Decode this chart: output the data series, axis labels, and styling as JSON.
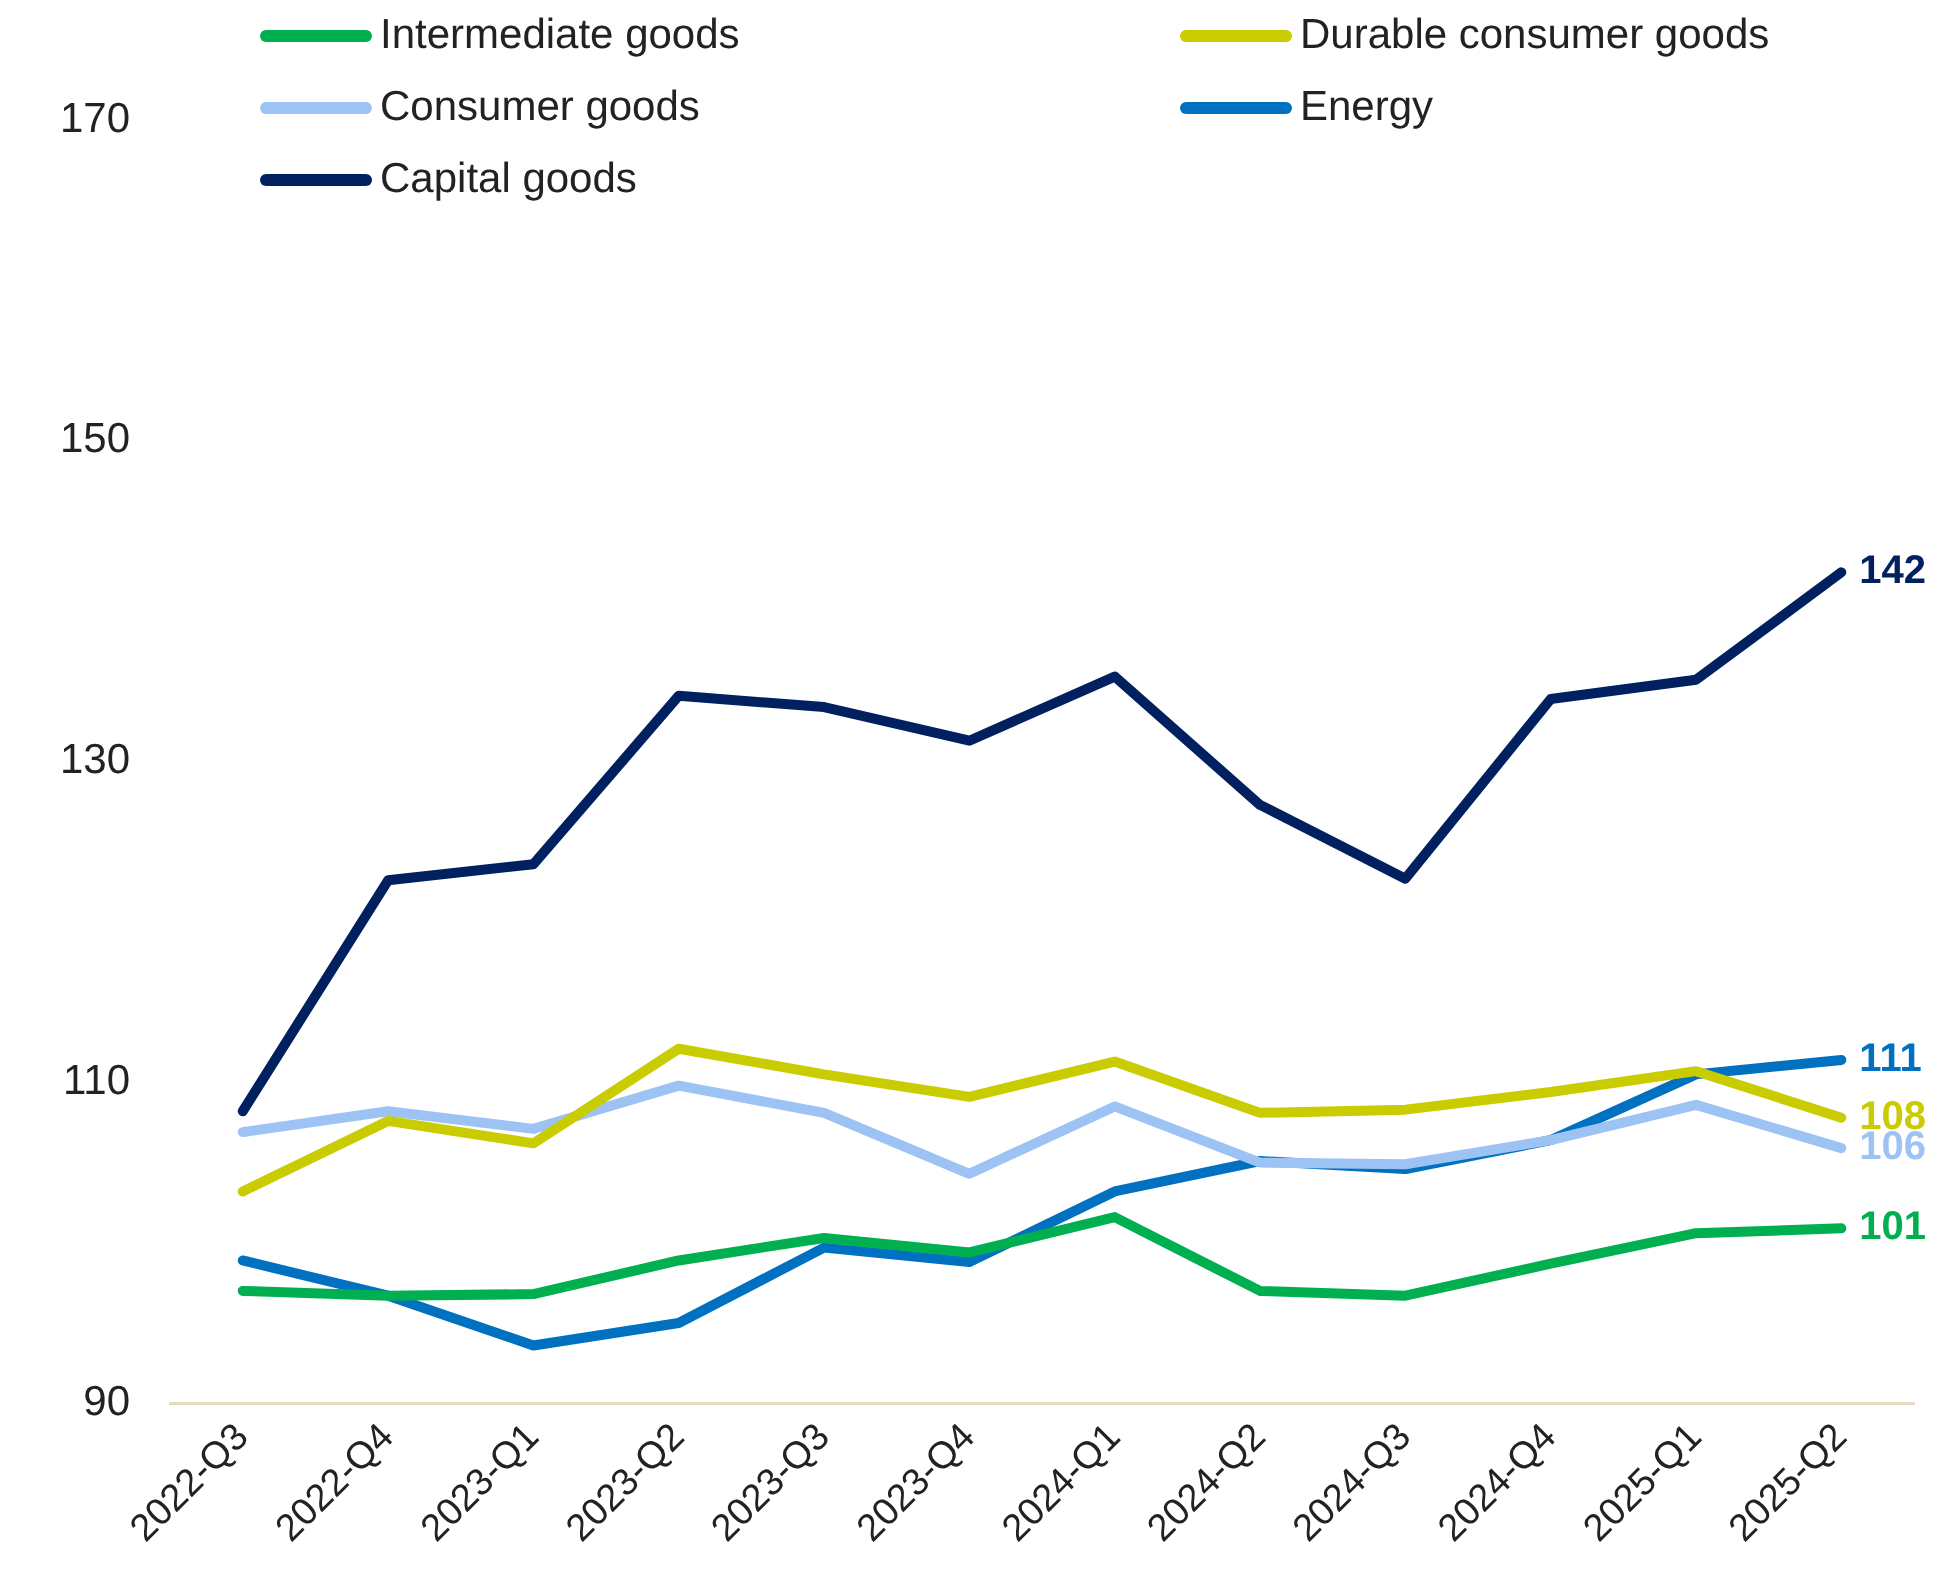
{
  "chart_data": {
    "type": "line",
    "categories": [
      "2022-Q3",
      "2022-Q4",
      "2023-Q1",
      "2023-Q2",
      "2023-Q3",
      "2023-Q4",
      "2024-Q1",
      "2024-Q2",
      "2024-Q3",
      "2024-Q4",
      "2025-Q1",
      "2025-Q2"
    ],
    "ylim": [
      90,
      170
    ],
    "yticks": [
      90,
      110,
      130,
      150,
      170
    ],
    "grid": false,
    "legend": "top",
    "marker": "none",
    "line_style": "solid",
    "series": [
      {
        "name": "Intermediate goods",
        "color": "#00b050",
        "values": [
          97.0,
          96.7,
          96.8,
          98.9,
          100.3,
          99.4,
          101.6,
          97.0,
          96.7,
          98.7,
          100.6,
          100.9
        ],
        "value_labels": [
          null,
          null,
          null,
          null,
          null,
          null,
          null,
          null,
          null,
          null,
          null,
          "101"
        ]
      },
      {
        "name": "Durable consumer goods",
        "color": "#c9cc00",
        "values": [
          103.2,
          107.6,
          106.2,
          112.1,
          110.5,
          109.1,
          111.3,
          108.1,
          108.3,
          109.4,
          110.7,
          107.8
        ],
        "value_labels": [
          null,
          null,
          null,
          null,
          null,
          null,
          null,
          null,
          null,
          null,
          null,
          "108"
        ]
      },
      {
        "name": "Consumer goods",
        "color": "#9dc3f5",
        "values": [
          106.9,
          108.2,
          107.1,
          109.8,
          108.1,
          104.3,
          108.5,
          105.0,
          104.9,
          106.4,
          108.6,
          105.9
        ],
        "value_labels": [
          null,
          null,
          null,
          null,
          null,
          null,
          null,
          null,
          null,
          null,
          null,
          "106"
        ]
      },
      {
        "name": "Energy",
        "color": "#0070c0",
        "values": [
          98.9,
          96.7,
          93.6,
          95.0,
          99.7,
          98.8,
          103.2,
          105.1,
          104.6,
          106.4,
          110.5,
          111.4
        ],
        "value_labels": [
          null,
          null,
          null,
          null,
          null,
          null,
          null,
          null,
          null,
          null,
          null,
          "111"
        ]
      },
      {
        "name": "Capital goods",
        "color": "#002060",
        "values": [
          108.2,
          122.6,
          123.6,
          134.1,
          133.4,
          131.3,
          135.3,
          127.3,
          122.7,
          133.9,
          135.1,
          141.8
        ],
        "value_labels": [
          null,
          null,
          null,
          null,
          null,
          null,
          null,
          null,
          null,
          null,
          null,
          "142"
        ]
      }
    ]
  }
}
